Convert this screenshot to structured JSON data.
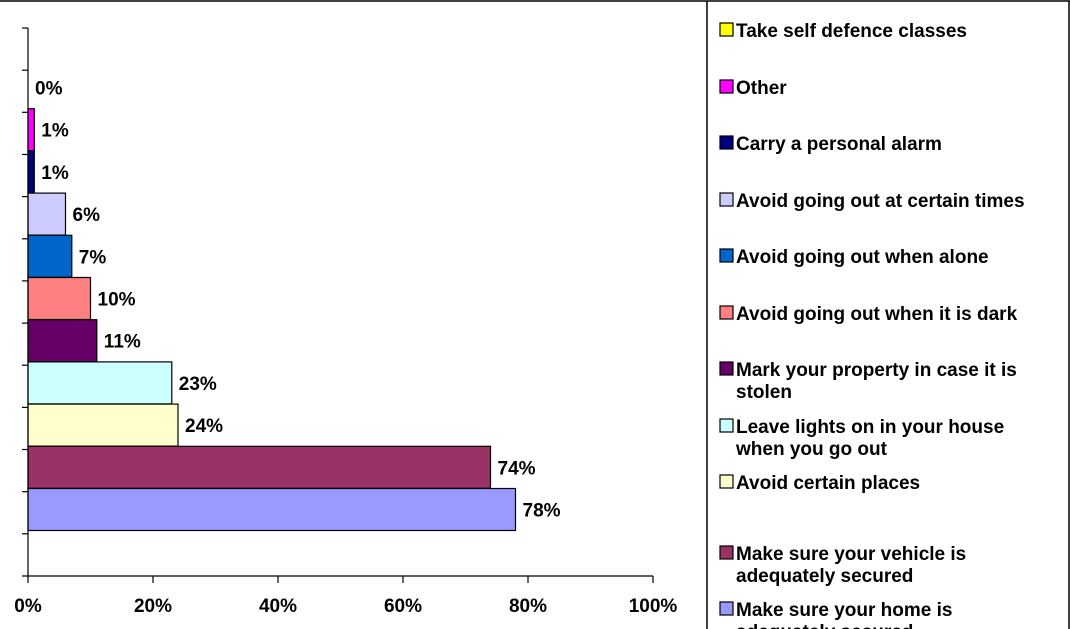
{
  "chart_data": {
    "type": "bar",
    "orientation": "horizontal",
    "xlim": [
      0,
      100
    ],
    "x_ticks": [
      "0%",
      "20%",
      "40%",
      "60%",
      "80%",
      "100%"
    ],
    "value_suffix": "%",
    "grid": false,
    "legend_position": "right",
    "series": [
      {
        "name": "Take self defence classes",
        "value": 0,
        "color": "#ffff00"
      },
      {
        "name": "Other",
        "value": 1,
        "color": "#ff00ff"
      },
      {
        "name": "Carry a personal alarm",
        "value": 1,
        "color": "#000080"
      },
      {
        "name": "Avoid going out at certain times",
        "value": 6,
        "color": "#ccccff"
      },
      {
        "name": "Avoid going out when alone",
        "value": 7,
        "color": "#0066cc"
      },
      {
        "name": "Avoid going out when it is dark",
        "value": 10,
        "color": "#ff8080"
      },
      {
        "name": "Mark your property in case it is stolen",
        "value": 11,
        "color": "#660066"
      },
      {
        "name": "Leave lights on in your house when you go out",
        "value": 23,
        "color": "#ccffff"
      },
      {
        "name": "Avoid certain places",
        "value": 24,
        "color": "#ffffcc"
      },
      {
        "name": "Make sure your vehicle is adequately secured",
        "value": 74,
        "color": "#993366"
      },
      {
        "name": "Make sure your home is adequately secured",
        "value": 78,
        "color": "#9999ff"
      }
    ]
  }
}
